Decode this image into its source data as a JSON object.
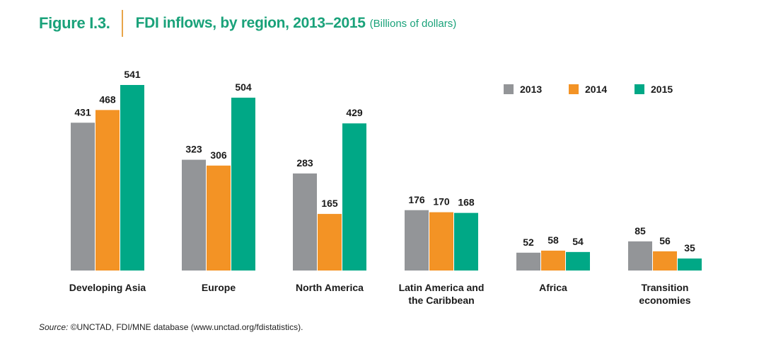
{
  "header": {
    "figure_number": "Figure I.3.",
    "title": "FDI inflows, by region, 2013–2015",
    "unit": "(Billions of dollars)"
  },
  "source": {
    "label": "Source:",
    "text": "©UNCTAD, FDI/MNE database (www.unctad.org/fdistatistics)."
  },
  "chart_data": {
    "type": "bar",
    "title": "FDI inflows, by region, 2013–2015",
    "unit": "(Billions of dollars)",
    "categories": [
      [
        "Developing Asia"
      ],
      [
        "Europe"
      ],
      [
        "North America"
      ],
      [
        "Latin America and",
        "the Caribbean"
      ],
      [
        "Africa"
      ],
      [
        "Transition",
        "economies"
      ]
    ],
    "series": [
      {
        "name": "2013",
        "color": "#939598",
        "values": [
          431,
          323,
          283,
          176,
          52,
          85
        ]
      },
      {
        "name": "2014",
        "color": "#f39325",
        "values": [
          468,
          306,
          165,
          170,
          58,
          56
        ]
      },
      {
        "name": "2015",
        "color": "#00a886",
        "values": [
          541,
          504,
          429,
          168,
          54,
          35
        ]
      }
    ],
    "ylim": [
      0,
      541
    ],
    "grid": false,
    "legend_position": "top-right",
    "data_labels": true
  }
}
